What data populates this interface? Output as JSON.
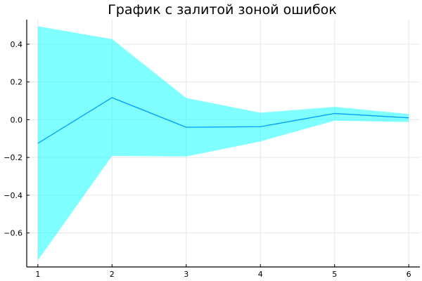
{
  "chart_data": {
    "type": "area",
    "title": "График с залитой зоной ошибок",
    "xlabel": "",
    "ylabel": "",
    "x": [
      1,
      2,
      3,
      4,
      5,
      6
    ],
    "xticks": [
      "1",
      "2",
      "3",
      "4",
      "5",
      "6"
    ],
    "yticks": [
      "−0.6",
      "−0.4",
      "−0.2",
      "0.0",
      "0.2",
      "0.4"
    ],
    "ytick_values": [
      -0.6,
      -0.4,
      -0.2,
      0.0,
      0.2,
      0.4
    ],
    "xlim": [
      0.85,
      6.15
    ],
    "ylim": [
      -0.78,
      0.53
    ],
    "grid": true,
    "legend": false,
    "series": [
      {
        "values": [
          -0.125,
          0.117,
          -0.04,
          -0.037,
          0.033,
          0.01
        ],
        "upper": [
          0.495,
          0.427,
          0.115,
          0.037,
          0.068,
          0.03
        ],
        "lower": [
          -0.745,
          -0.192,
          -0.195,
          -0.115,
          -0.005,
          -0.012
        ],
        "line_color": "#009AFA",
        "fill_color": "#00FFFF",
        "fill_opacity": 0.5
      }
    ]
  }
}
